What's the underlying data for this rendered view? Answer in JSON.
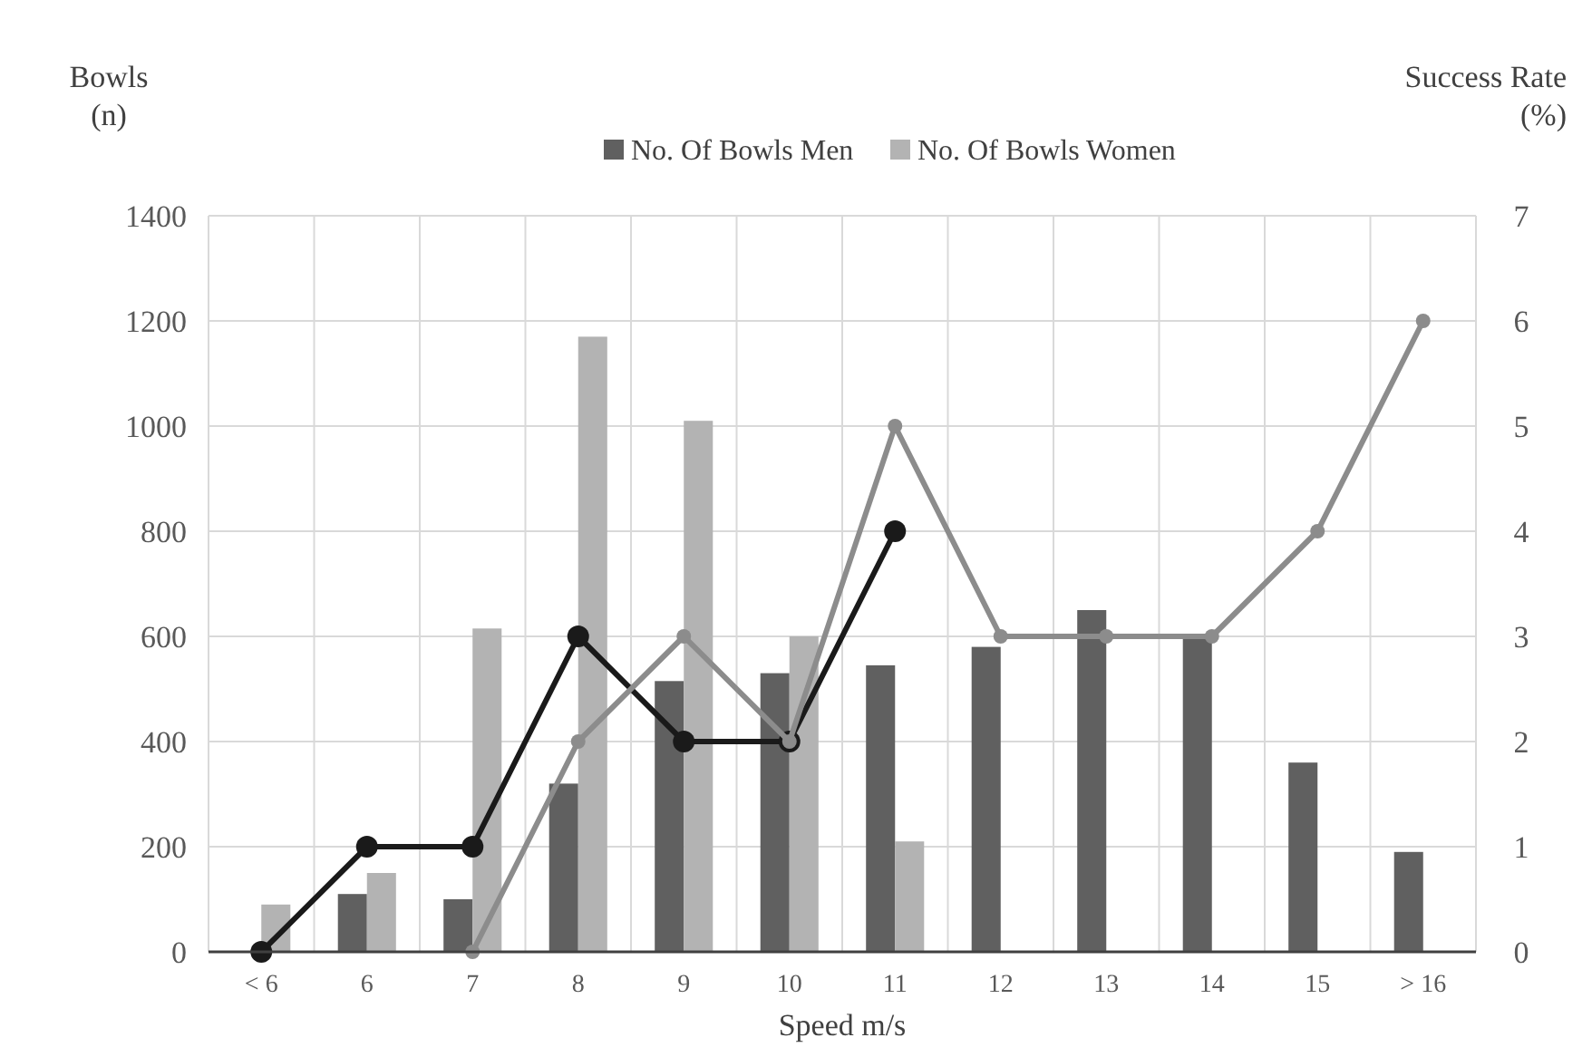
{
  "chart_data": {
    "type": "bar",
    "xlabel": "Speed m/s",
    "ylabel": "Bowls\n(n)",
    "y2label": "Success Rate\n(%)",
    "categories": [
      "< 6",
      "6",
      "7",
      "8",
      "9",
      "10",
      "11",
      "12",
      "13",
      "14",
      "15",
      "> 16"
    ],
    "series": [
      {
        "name": "No. Of Bowls Men",
        "color": "#606060",
        "values": [
          null,
          110,
          100,
          320,
          515,
          530,
          545,
          580,
          650,
          600,
          360,
          190
        ]
      },
      {
        "name": "No. Of Bowls Women",
        "color": "#b3b3b3",
        "values": [
          90,
          150,
          615,
          1170,
          1010,
          600,
          210,
          null,
          null,
          null,
          null,
          null
        ]
      },
      {
        "type": "line",
        "axis": "y2",
        "color": "#1a1a1a",
        "values": [
          0,
          1,
          1,
          3,
          2,
          2,
          4,
          null,
          null,
          null,
          null,
          null
        ]
      },
      {
        "type": "line",
        "axis": "y2",
        "color": "#8c8c8c",
        "values": [
          null,
          null,
          0,
          2,
          3,
          2,
          5,
          3,
          3,
          3,
          4,
          6
        ]
      }
    ],
    "ylim": [
      0,
      1400
    ],
    "yticks": [
      0,
      200,
      400,
      600,
      800,
      1000,
      1200,
      1400
    ],
    "y2lim": [
      0,
      7
    ],
    "y2ticks": [
      0,
      1,
      2,
      3,
      4,
      5,
      6,
      7
    ],
    "grid": true,
    "legend": "top",
    "marker": "circle"
  }
}
